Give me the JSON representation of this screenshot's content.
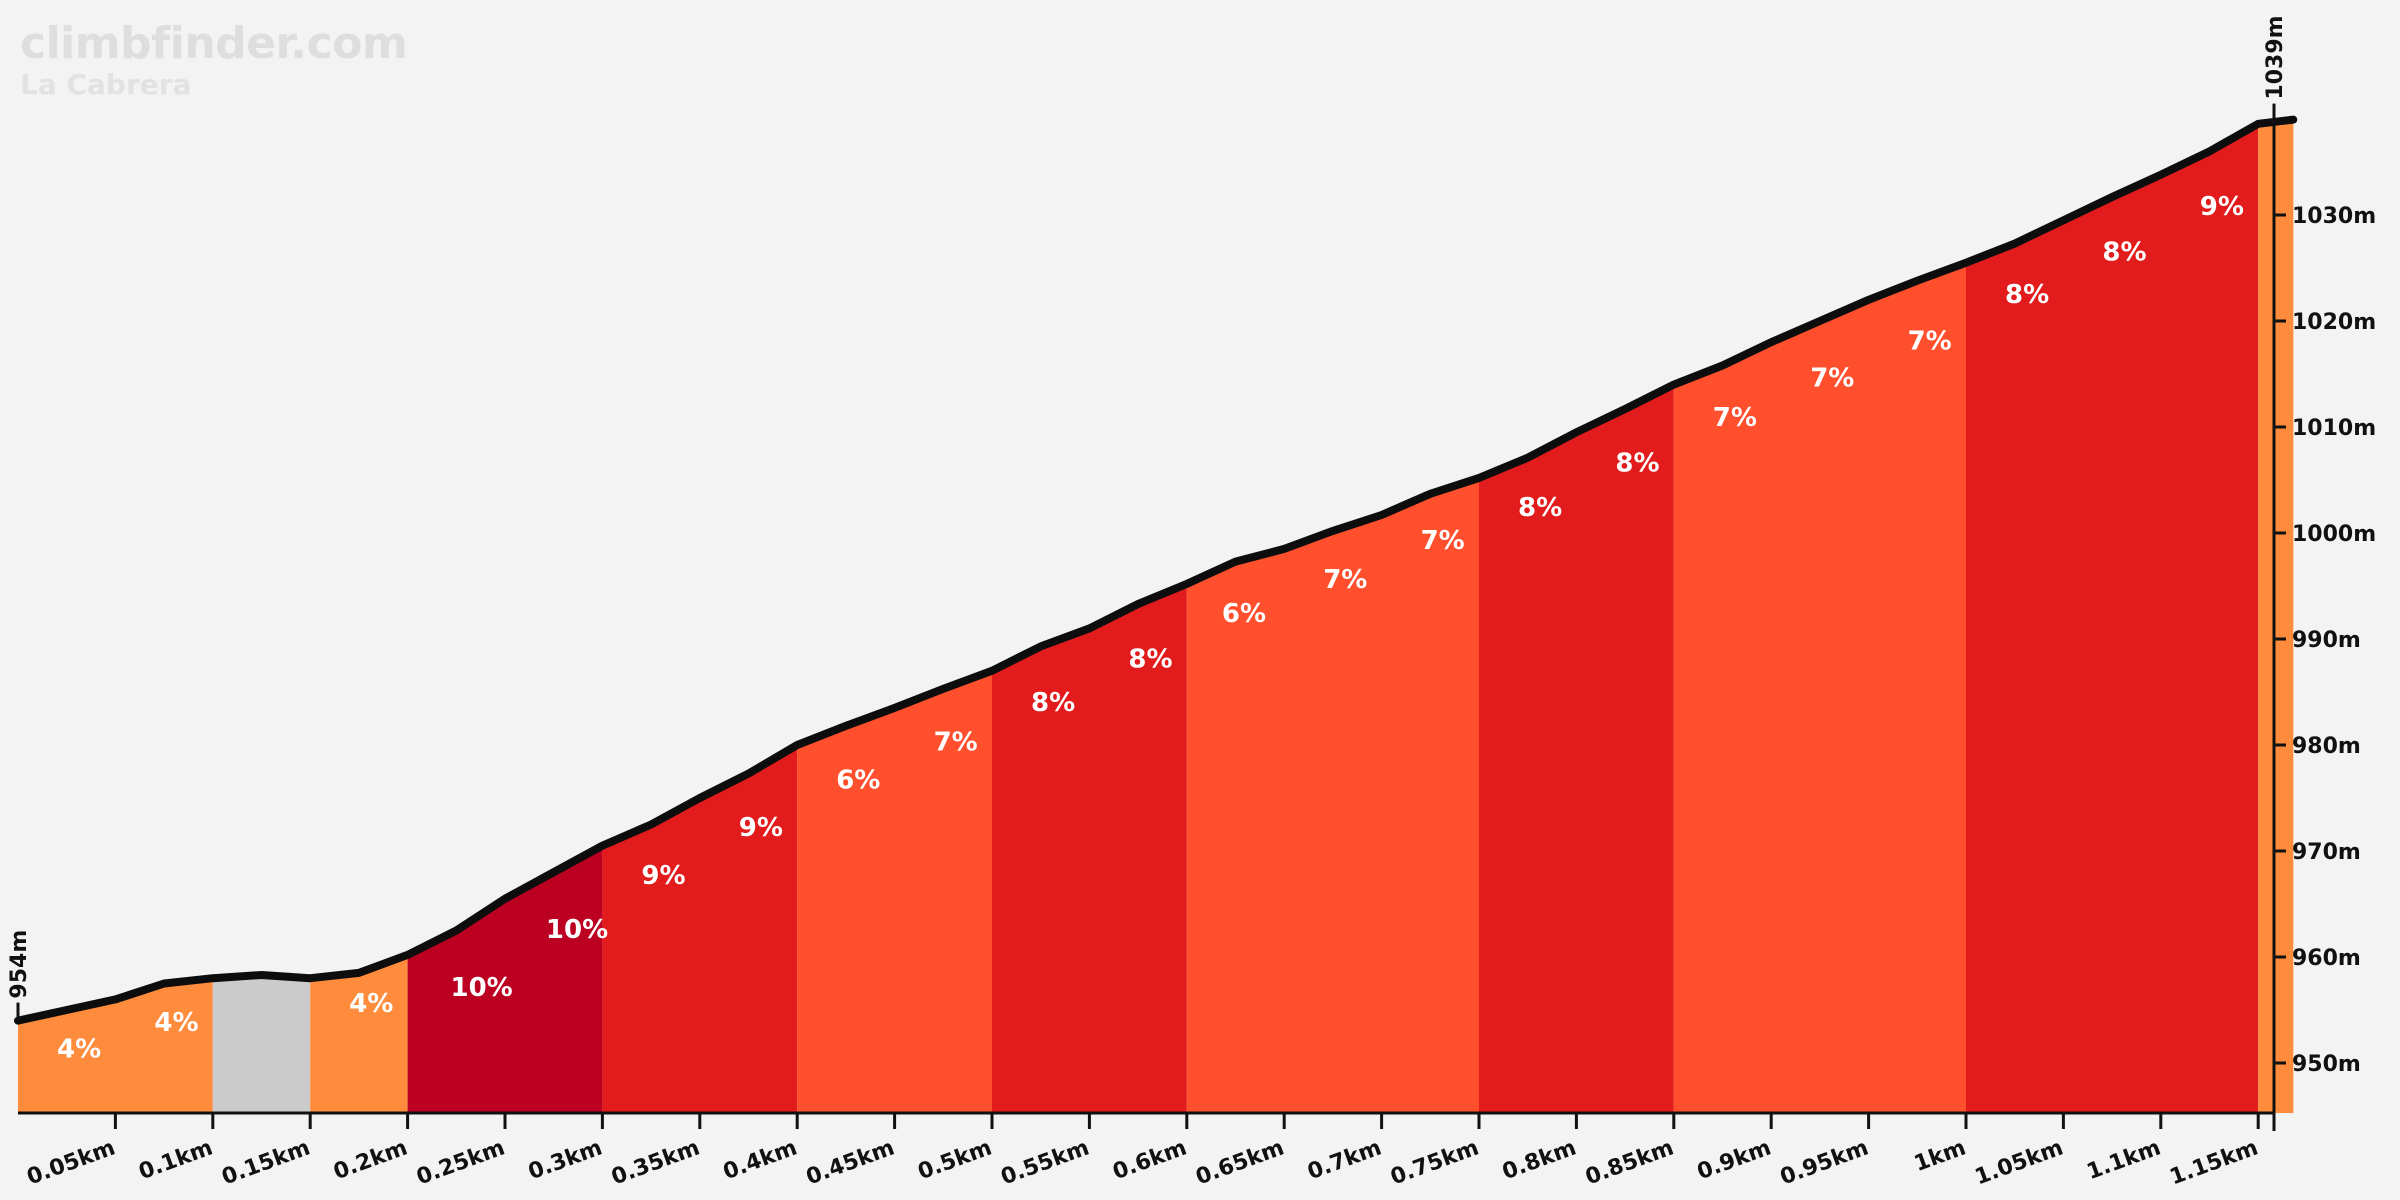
{
  "site": "climbfinder.com",
  "climb_name": "La Cabrera",
  "chart_data": {
    "type": "area",
    "title": "",
    "xlabel": "",
    "ylabel": "",
    "xlim_km": [
      0,
      1.18
    ],
    "ylim_m": [
      945,
      1039
    ],
    "start_label": "954m",
    "end_label": "1039m",
    "grid": false,
    "profile": {
      "x": [
        0,
        0.025,
        0.05,
        0.075,
        0.1,
        0.125,
        0.15,
        0.175,
        0.2,
        0.225,
        0.25,
        0.275,
        0.3,
        0.325,
        0.35,
        0.375,
        0.4,
        0.425,
        0.45,
        0.475,
        0.5,
        0.525,
        0.55,
        0.575,
        0.6,
        0.625,
        0.65,
        0.675,
        0.7,
        0.725,
        0.75,
        0.775,
        0.8,
        0.825,
        0.85,
        0.875,
        0.9,
        0.925,
        0.95,
        0.975,
        1.0,
        1.025,
        1.05,
        1.075,
        1.1,
        1.125,
        1.15,
        1.168
      ],
      "y": [
        954,
        955,
        956,
        957.5,
        958,
        958.3,
        958,
        958.5,
        960.2,
        962.5,
        965.5,
        968,
        970.5,
        972.5,
        975,
        977.3,
        980,
        981.8,
        983.5,
        985.3,
        987,
        989.3,
        991,
        993.3,
        995.2,
        997.3,
        998.5,
        1000.2,
        1001.7,
        1003.7,
        1005.2,
        1007.1,
        1009.5,
        1011.7,
        1014,
        1015.8,
        1018,
        1020,
        1022,
        1023.8,
        1025.5,
        1027.3,
        1029.5,
        1031.7,
        1033.8,
        1036,
        1038.6,
        1039
      ]
    },
    "segments": [
      {
        "x0": 0,
        "x1": 0.1,
        "grade": "4%",
        "color": "#ff8c3c",
        "labels": [
          {
            "text": "4%",
            "x": 0.02,
            "y": 950.5
          },
          {
            "text": "4%",
            "x": 0.07,
            "y": 953
          }
        ]
      },
      {
        "x0": 0.1,
        "x1": 0.15,
        "grade": "",
        "color": "#cbcbcb",
        "labels": []
      },
      {
        "x0": 0.15,
        "x1": 0.2,
        "grade": "4%",
        "color": "#ff8c3c",
        "labels": [
          {
            "text": "4%",
            "x": 0.17,
            "y": 954.8
          }
        ]
      },
      {
        "x0": 0.2,
        "x1": 0.3,
        "grade": "10%",
        "color": "#bb0022",
        "labels": [
          {
            "text": "10%",
            "x": 0.222,
            "y": 956.3
          },
          {
            "text": "10%",
            "x": 0.271,
            "y": 961.8
          }
        ]
      },
      {
        "x0": 0.3,
        "x1": 0.4,
        "grade": "9%",
        "color": "#e21c1c",
        "labels": [
          {
            "text": "9%",
            "x": 0.32,
            "y": 966.9
          },
          {
            "text": "9%",
            "x": 0.37,
            "y": 971.4
          }
        ]
      },
      {
        "x0": 0.4,
        "x1": 0.5,
        "grade": "6%",
        "color": "#ff4f2d",
        "labels": [
          {
            "text": "6%",
            "x": 0.42,
            "y": 975.9
          },
          {
            "text": "7%",
            "x": 0.47,
            "y": 979.5
          }
        ]
      },
      {
        "x0": 0.5,
        "x1": 0.6,
        "grade": "8%",
        "color": "#e21c1c",
        "labels": [
          {
            "text": "8%",
            "x": 0.52,
            "y": 983.2
          },
          {
            "text": "8%",
            "x": 0.57,
            "y": 987.3
          }
        ]
      },
      {
        "x0": 0.6,
        "x1": 0.75,
        "grade": "6%",
        "color": "#ff4f2d",
        "labels": [
          {
            "text": "6%",
            "x": 0.618,
            "y": 991.6
          },
          {
            "text": "7%",
            "x": 0.67,
            "y": 994.8
          },
          {
            "text": "7%",
            "x": 0.72,
            "y": 998.5
          }
        ]
      },
      {
        "x0": 0.75,
        "x1": 0.85,
        "grade": "8%",
        "color": "#e21c1c",
        "labels": [
          {
            "text": "8%",
            "x": 0.77,
            "y": 1001.6
          },
          {
            "text": "8%",
            "x": 0.82,
            "y": 1005.8
          }
        ]
      },
      {
        "x0": 0.85,
        "x1": 1.0,
        "grade": "7%",
        "color": "#ff4f2d",
        "labels": [
          {
            "text": "7%",
            "x": 0.87,
            "y": 1010.1
          },
          {
            "text": "7%",
            "x": 0.92,
            "y": 1013.8
          },
          {
            "text": "7%",
            "x": 0.97,
            "y": 1017.3
          }
        ]
      },
      {
        "x0": 1.0,
        "x1": 1.15,
        "grade": "8%",
        "color": "#e21c1c",
        "labels": [
          {
            "text": "8%",
            "x": 1.02,
            "y": 1021.7
          },
          {
            "text": "8%",
            "x": 1.07,
            "y": 1025.7
          },
          {
            "text": "9%",
            "x": 1.12,
            "y": 1030
          }
        ]
      },
      {
        "x0": 1.15,
        "x1": 1.168,
        "grade": "",
        "color": "#ff8c3c",
        "labels": []
      }
    ],
    "x_ticks": [
      {
        "value": 0.05,
        "label": "0.05km"
      },
      {
        "value": 0.1,
        "label": "0.1km"
      },
      {
        "value": 0.15,
        "label": "0.15km"
      },
      {
        "value": 0.2,
        "label": "0.2km"
      },
      {
        "value": 0.25,
        "label": "0.25km"
      },
      {
        "value": 0.3,
        "label": "0.3km"
      },
      {
        "value": 0.35,
        "label": "0.35km"
      },
      {
        "value": 0.4,
        "label": "0.4km"
      },
      {
        "value": 0.45,
        "label": "0.45km"
      },
      {
        "value": 0.5,
        "label": "0.5km"
      },
      {
        "value": 0.55,
        "label": "0.55km"
      },
      {
        "value": 0.6,
        "label": "0.6km"
      },
      {
        "value": 0.65,
        "label": "0.65km"
      },
      {
        "value": 0.7,
        "label": "0.7km"
      },
      {
        "value": 0.75,
        "label": "0.75km"
      },
      {
        "value": 0.8,
        "label": "0.8km"
      },
      {
        "value": 0.85,
        "label": "0.85km"
      },
      {
        "value": 0.9,
        "label": "0.9km"
      },
      {
        "value": 0.95,
        "label": "0.95km"
      },
      {
        "value": 1.0,
        "label": "1km"
      },
      {
        "value": 1.05,
        "label": "1.05km"
      },
      {
        "value": 1.1,
        "label": "1.1km"
      },
      {
        "value": 1.15,
        "label": "1.15km"
      }
    ],
    "y_ticks": [
      {
        "value": 950,
        "label": "950m"
      },
      {
        "value": 960,
        "label": "960m"
      },
      {
        "value": 970,
        "label": "970m"
      },
      {
        "value": 980,
        "label": "980m"
      },
      {
        "value": 990,
        "label": "990m"
      },
      {
        "value": 1000,
        "label": "1000m"
      },
      {
        "value": 1010,
        "label": "1010m"
      },
      {
        "value": 1020,
        "label": "1020m"
      },
      {
        "value": 1030,
        "label": "1030m"
      }
    ]
  }
}
